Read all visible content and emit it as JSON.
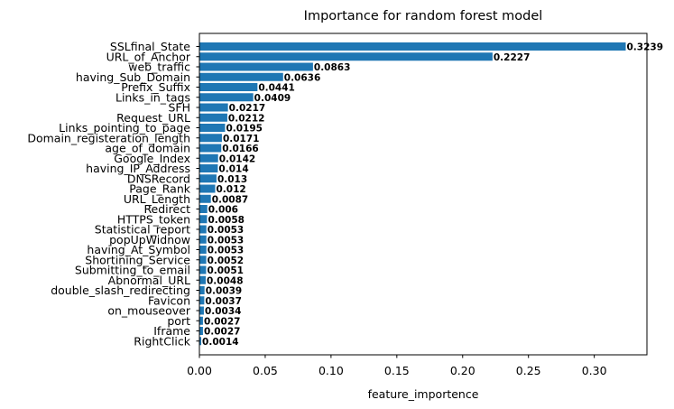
{
  "chart_data": {
    "type": "bar",
    "orientation": "horizontal",
    "title": "Importance for random forest model",
    "xlabel": "feature_importence",
    "ylabel": "",
    "xlim": [
      0,
      0.34
    ],
    "xticks": [
      "0.00",
      "0.05",
      "0.10",
      "0.15",
      "0.20",
      "0.25",
      "0.30"
    ],
    "grid": false,
    "bar_color": "#1f77b4",
    "categories": [
      "SSLfinal_State",
      "URL_of_Anchor",
      "web_traffic",
      "having_Sub_Domain",
      "Prefix_Suffix",
      "Links_in_tags",
      "SFH",
      "Request_URL",
      "Links_pointing_to_page",
      "Domain_registeration_length",
      "age_of_domain",
      "Google_Index",
      "having_IP_Address",
      "DNSRecord",
      "Page_Rank",
      "URL_Length",
      "Redirect",
      "HTTPS_token",
      "Statistical_report",
      "popUpWidnow",
      "having_At_Symbol",
      "Shortining_Service",
      "Submitting_to_email",
      "Abnormal_URL",
      "double_slash_redirecting",
      "Favicon",
      "on_mouseover",
      "port",
      "Iframe",
      "RightClick"
    ],
    "values": [
      0.3239,
      0.2227,
      0.0863,
      0.0636,
      0.0441,
      0.0409,
      0.0217,
      0.0212,
      0.0195,
      0.0171,
      0.0166,
      0.0142,
      0.014,
      0.013,
      0.012,
      0.0087,
      0.006,
      0.0058,
      0.0053,
      0.0053,
      0.0053,
      0.0052,
      0.0051,
      0.0048,
      0.0039,
      0.0037,
      0.0034,
      0.0027,
      0.0027,
      0.0014
    ],
    "value_labels": [
      "0.3239",
      "0.2227",
      "0.0863",
      "0.0636",
      "0.0441",
      "0.0409",
      "0.0217",
      "0.0212",
      "0.0195",
      "0.0171",
      "0.0166",
      "0.0142",
      "0.014",
      "0.013",
      "0.012",
      "0.0087",
      "0.006",
      "0.0058",
      "0.0053",
      "0.0053",
      "0.0053",
      "0.0052",
      "0.0051",
      "0.0048",
      "0.0039",
      "0.0037",
      "0.0034",
      "0.0027",
      "0.0027",
      "0.0014"
    ]
  }
}
